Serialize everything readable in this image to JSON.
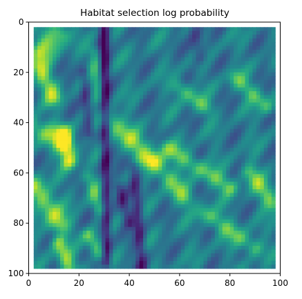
{
  "chart_data": {
    "type": "heatmap",
    "title": "Habitat selection log probability",
    "xlabel": "",
    "ylabel": "",
    "xlim": [
      0,
      100
    ],
    "ylim": [
      0,
      100
    ],
    "y_axis_inverted": true,
    "x_ticks": [
      0,
      20,
      40,
      60,
      80,
      100
    ],
    "y_ticks": [
      0,
      20,
      40,
      60,
      80,
      100
    ],
    "x_tick_labels": [
      "0",
      "20",
      "40",
      "60",
      "80",
      "100"
    ],
    "y_tick_labels": [
      "0",
      "20",
      "40",
      "60",
      "80",
      "100"
    ],
    "data_extent": {
      "x": [
        2,
        98
      ],
      "y": [
        2,
        98
      ]
    },
    "colormap": "viridis",
    "colors": {
      "low": "#440154",
      "mid": "#21918c",
      "high": "#fde725"
    },
    "grid": false,
    "legend": "none"
  }
}
